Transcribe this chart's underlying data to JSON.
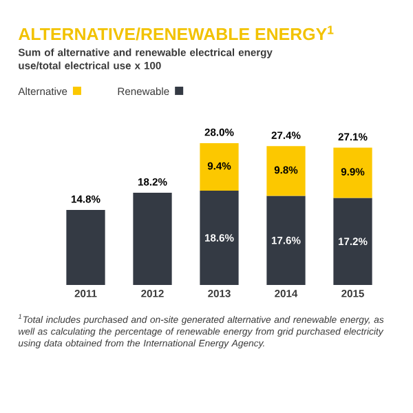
{
  "chart_data": {
    "type": "bar",
    "title": "ALTERNATIVE/RENEWABLE ENERGY$^{1}$",
    "subtitle": "Sum of alternative and renewable electrical energy use/total electrical use x 100",
    "categories": [
      "2011",
      "2012",
      "2013",
      "2014",
      "2015"
    ],
    "stacked": true,
    "legend": "top left",
    "series": [
      {
        "name": "Renewable",
        "color": "#343a44",
        "values": [
          14.8,
          18.2,
          18.6,
          17.6,
          17.2
        ],
        "value_labels": [
          null,
          null,
          "18.6%",
          "17.6%",
          "17.2%"
        ]
      },
      {
        "name": "Alternative",
        "color": "#fcc800",
        "values": [
          null,
          null,
          9.4,
          9.8,
          9.9
        ],
        "value_labels": [
          null,
          null,
          "9.4%",
          "9.8%",
          "9.9%"
        ]
      }
    ],
    "totals": [
      "14.8%",
      "18.2%",
      "28.0%",
      "27.4%",
      "27.1%"
    ],
    "annotations": [
      "$^{1}$Total includes purchased and on-site generated alternative and renewable energy, as well as calculating the percentage of renewable energy from grid purchased electricity using data obtained from the International Energy Agency."
    ]
  }
}
